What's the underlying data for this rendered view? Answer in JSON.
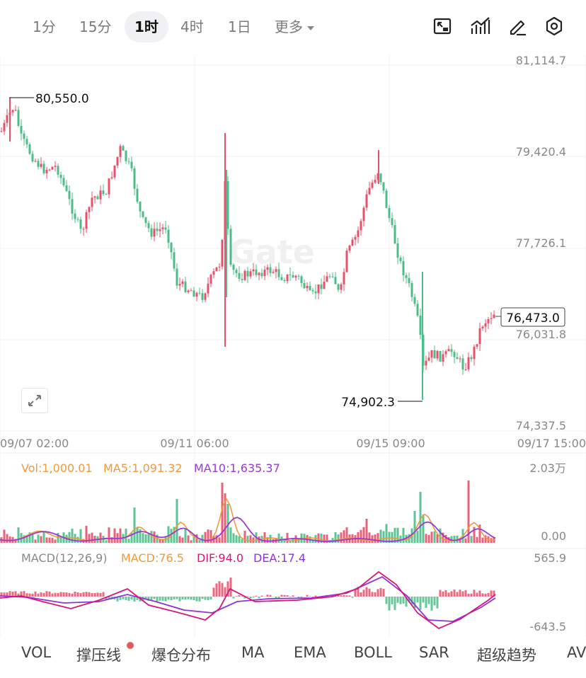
{
  "timeframes": [
    "1分",
    "15分",
    "1时",
    "4时",
    "1日",
    "更多"
  ],
  "active_timeframe": "1时",
  "toolbar_icons": [
    "fullscreen-icon",
    "indicator-icon",
    "draw-icon",
    "settings-icon"
  ],
  "watermark": "Gate",
  "price_axis": [
    "81,114.7",
    "79,420.4",
    "77,726.1",
    "76,031.8",
    "74,337.5"
  ],
  "time_axis": [
    "09/07 02:00",
    "09/11 06:00",
    "09/15 09:00",
    "09/17 15:00"
  ],
  "high_label": "80,550.0",
  "low_label": "74,902.3",
  "current_price": "76,473.0",
  "volume": {
    "vol_label": "Vol:1,000.01",
    "ma5_label": "MA5:1,091.32",
    "ma10_label": "MA10:1,635.37",
    "axis_top": "2.03万",
    "axis_bottom": "0.00"
  },
  "macd": {
    "params_label": "MACD(12,26,9)",
    "macd_label": "MACD:76.5",
    "dif_label": "DIF:94.0",
    "dea_label": "DEA:17.4",
    "axis_top": "565.9",
    "axis_bottom": "-643.5"
  },
  "bottom_tabs": [
    "VOL",
    "撑压线",
    "爆仓分布",
    "MA",
    "EMA",
    "BOLL",
    "SAR",
    "超级趋势",
    "AV"
  ],
  "colors": {
    "up": "#e8506b",
    "down": "#4cbd8a",
    "ma5": "#ef9a3c",
    "ma10": "#9b3ad1",
    "dif": "#d6177a",
    "dea": "#8e33d6"
  }
}
